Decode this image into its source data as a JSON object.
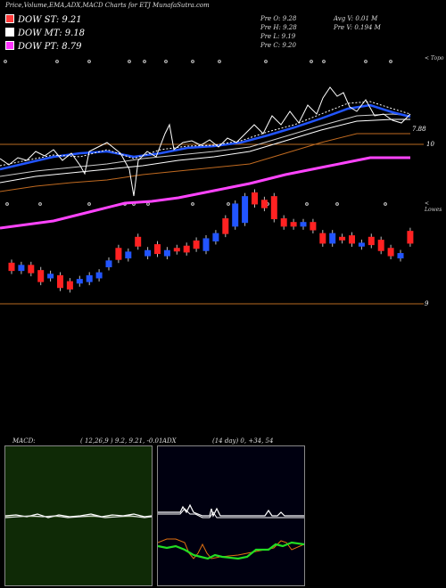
{
  "title": "Price,Volume,EMA,ADX,MACD Charts for ETJ MunafaSutra.com",
  "legend": [
    {
      "label": "DOW ST: 9.21",
      "color": "#ff3b3b"
    },
    {
      "label": "DOW MT: 9.18",
      "color": "#ffffff"
    },
    {
      "label": "DOW PT: 8.79",
      "color": "#ff33ff"
    }
  ],
  "ohlc": {
    "open": "Pre  O: 9.28",
    "high": "Pre  H: 9.28",
    "low": "Pre  L: 9.19",
    "close": "Pre  C: 9.20",
    "avg_vol": "Avg V: 0.01 M",
    "pre_vol": "Pre  V: 0.194  M"
  },
  "axis": {
    "top_right": "< Topo",
    "level_788": "7.88",
    "level_10": "10",
    "lower_right": "< Lowes",
    "level_9": "9"
  },
  "panels": {
    "macd_label": "MACD:",
    "macd_params": "( 12,26,9 ) 9.2, 9.21, -0.01",
    "adx_label": "ADX",
    "adx_params": "(14  day) 0, +34, 54"
  },
  "colors": {
    "up": "#2255ff",
    "down": "#ff2222",
    "ema_fast": "#2255ff",
    "ema_pt": "#ff44ff",
    "level_line": "#b86a20"
  },
  "chart_data": {
    "type": "candlestick",
    "title": "Price,Volume,EMA,ADX,MACD Charts for ETJ MunafaSutra.com",
    "reference_levels": [
      7.88,
      10,
      9
    ],
    "candles": [
      {
        "o": 9.55,
        "c": 9.45,
        "up": false
      },
      {
        "o": 9.45,
        "c": 9.52,
        "up": true
      },
      {
        "o": 9.52,
        "c": 9.42,
        "up": false
      },
      {
        "o": 9.45,
        "c": 9.3,
        "up": false
      },
      {
        "o": 9.35,
        "c": 9.4,
        "up": true
      },
      {
        "o": 9.38,
        "c": 9.22,
        "up": false
      },
      {
        "o": 9.3,
        "c": 9.2,
        "up": false
      },
      {
        "o": 9.28,
        "c": 9.33,
        "up": true
      },
      {
        "o": 9.3,
        "c": 9.38,
        "up": true
      },
      {
        "o": 9.35,
        "c": 9.42,
        "up": true
      },
      {
        "o": 9.5,
        "c": 9.58,
        "up": true
      },
      {
        "o": 9.6,
        "c": 9.75,
        "up": false
      },
      {
        "o": 9.62,
        "c": 9.7,
        "up": true
      },
      {
        "o": 9.78,
        "c": 9.9,
        "up": false
      },
      {
        "o": 9.65,
        "c": 9.72,
        "up": true
      },
      {
        "o": 9.68,
        "c": 9.8,
        "up": false
      },
      {
        "o": 9.65,
        "c": 9.72,
        "up": true
      },
      {
        "o": 9.72,
        "c": 9.75,
        "up": false
      },
      {
        "o": 9.7,
        "c": 9.78,
        "up": false
      },
      {
        "o": 9.75,
        "c": 9.85,
        "up": false
      },
      {
        "o": 9.72,
        "c": 9.88,
        "up": true
      },
      {
        "o": 9.85,
        "c": 9.95,
        "up": true
      },
      {
        "o": 9.95,
        "c": 10.15,
        "up": false
      },
      {
        "o": 10.05,
        "c": 10.35,
        "up": true
      },
      {
        "o": 10.1,
        "c": 10.45,
        "up": true
      },
      {
        "o": 10.5,
        "c": 10.35,
        "up": false
      },
      {
        "o": 10.4,
        "c": 10.3,
        "up": false
      },
      {
        "o": 10.45,
        "c": 10.15,
        "up": false
      },
      {
        "o": 10.15,
        "c": 10.05,
        "up": false
      },
      {
        "o": 10.1,
        "c": 10.05,
        "up": false
      },
      {
        "o": 10.05,
        "c": 10.1,
        "up": true
      },
      {
        "o": 10.1,
        "c": 10.0,
        "up": false
      },
      {
        "o": 9.95,
        "c": 9.82,
        "up": false
      },
      {
        "o": 9.82,
        "c": 9.95,
        "up": true
      },
      {
        "o": 9.9,
        "c": 9.88,
        "up": false
      },
      {
        "o": 9.92,
        "c": 9.82,
        "up": false
      },
      {
        "o": 9.78,
        "c": 9.82,
        "up": true
      },
      {
        "o": 9.9,
        "c": 9.8,
        "up": false
      },
      {
        "o": 9.86,
        "c": 9.72,
        "up": false
      },
      {
        "o": 9.75,
        "c": 9.65,
        "up": false
      },
      {
        "o": 9.62,
        "c": 9.68,
        "up": true
      },
      {
        "o": 9.82,
        "c": 9.98,
        "up": false
      }
    ]
  }
}
